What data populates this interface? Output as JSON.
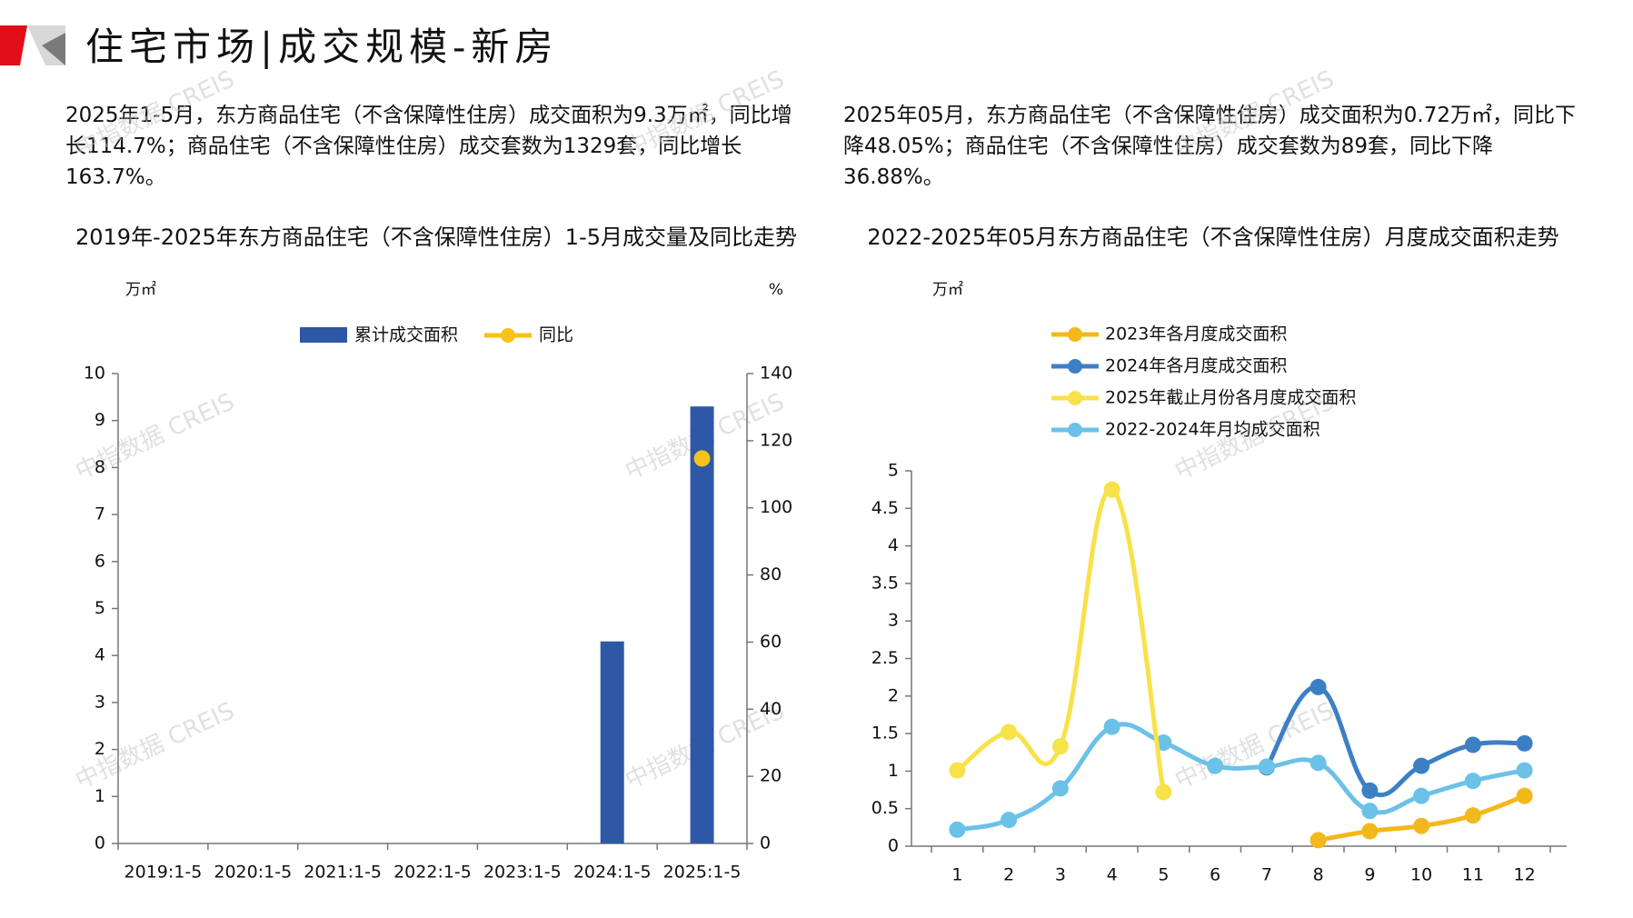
{
  "header": {
    "title": "住宅市场|成交规模-新房"
  },
  "left_panel": {
    "description": "2025年1-5月，东方商品住宅（不含保障性住房）成交面积为9.3万㎡，同比增长114.7%；商品住宅（不含保障性住房）成交套数为1329套，同比增长163.7%。",
    "chart_title": "2019年-2025年东方商品住宅（不含保障性住房）1-5月成交量及同比走势"
  },
  "right_panel": {
    "description": "2025年05月，东方商品住宅（不含保障性住房）成交面积为0.72万㎡，同比下降48.05%；商品住宅（不含保障性住房）成交套数为89套，同比下降36.88%。",
    "chart_title": "2022-2025年05月东方商品住宅（不含保障性住房）月度成交面积走势"
  },
  "watermark_text": "中指数据 CREIS",
  "colors": {
    "bar": "#2e58a6",
    "yoy": "#f7c21b",
    "s2023": "#f2b81c",
    "s2024": "#3d7fc4",
    "s2025": "#f8e24a",
    "avg": "#6cc1e8",
    "logo_red": "#e10e19",
    "logo_gray": "#8e8e8e"
  },
  "chart_data": [
    {
      "type": "bar",
      "title": "2019年-2025年东方商品住宅（不含保障性住房）1-5月成交量及同比走势",
      "ylabel": "万㎡",
      "y2label": "%",
      "ylim": [
        0,
        10
      ],
      "yticks": [
        0,
        1,
        2,
        3,
        4,
        5,
        6,
        7,
        8,
        9,
        10
      ],
      "y2lim": [
        0,
        140
      ],
      "y2ticks": [
        0,
        20,
        40,
        60,
        80,
        100,
        120,
        140
      ],
      "categories": [
        "2019:1-5",
        "2020:1-5",
        "2021:1-5",
        "2022:1-5",
        "2023:1-5",
        "2024:1-5",
        "2025:1-5"
      ],
      "series": [
        {
          "name": "累计成交面积",
          "type": "bar",
          "axis": "left",
          "values": [
            null,
            null,
            null,
            null,
            null,
            4.3,
            9.3
          ]
        },
        {
          "name": "同比",
          "type": "scatter",
          "axis": "right",
          "values": [
            null,
            null,
            null,
            null,
            null,
            null,
            114.7
          ]
        }
      ]
    },
    {
      "type": "line",
      "title": "2022-2025年05月东方商品住宅（不含保障性住房）月度成交面积走势",
      "ylabel": "万㎡",
      "ylim": [
        0,
        5
      ],
      "yticks": [
        "0",
        "0.5",
        "1",
        "1.5",
        "2",
        "2.5",
        "3",
        "3.5",
        "4",
        "4.5",
        "5"
      ],
      "categories": [
        "1",
        "2",
        "3",
        "4",
        "5",
        "6",
        "7",
        "8",
        "9",
        "10",
        "11",
        "12"
      ],
      "series": [
        {
          "name": "2023年各月度成交面积",
          "values": [
            null,
            null,
            null,
            null,
            null,
            null,
            null,
            0.08,
            0.2,
            0.27,
            0.41,
            0.67
          ]
        },
        {
          "name": "2024年各月度成交面积",
          "values": [
            null,
            null,
            null,
            null,
            null,
            null,
            1.05,
            2.12,
            0.74,
            1.07,
            1.35,
            1.37
          ]
        },
        {
          "name": "2025年截止月份各月度成交面积",
          "values": [
            1.01,
            1.52,
            1.33,
            4.75,
            0.72,
            null,
            null,
            null,
            null,
            null,
            null,
            null
          ]
        },
        {
          "name": "2022-2024年月均成交面积",
          "values": [
            0.22,
            0.35,
            0.77,
            1.59,
            1.38,
            1.07,
            1.06,
            1.11,
            0.47,
            0.67,
            0.87,
            1.01
          ]
        }
      ]
    }
  ]
}
